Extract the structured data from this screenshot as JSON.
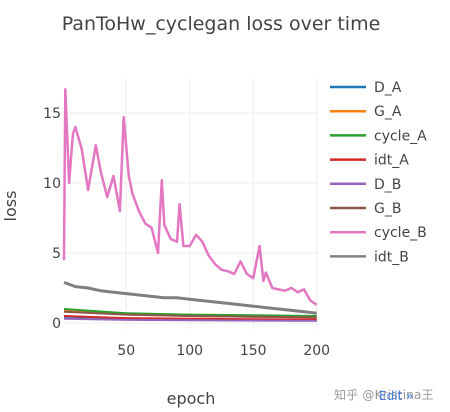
{
  "chart_data": {
    "type": "line",
    "title": "PanToHw_cyclegan loss over time",
    "xlabel": "epoch",
    "ylabel": "loss",
    "xlim": [
      1,
      201
    ],
    "ylim": [
      -0.5,
      17.5
    ],
    "x_ticks": [
      50,
      100,
      150,
      200
    ],
    "y_ticks": [
      0,
      5,
      10,
      15
    ],
    "grid": true,
    "legend_position": "right",
    "series": [
      {
        "name": "D_A",
        "color": "#1f77b4",
        "values": [
          [
            1,
            0.35
          ],
          [
            50,
            0.27
          ],
          [
            100,
            0.23
          ],
          [
            150,
            0.2
          ],
          [
            200,
            0.18
          ]
        ]
      },
      {
        "name": "G_A",
        "color": "#ff7f0e",
        "values": [
          [
            1,
            0.9
          ],
          [
            50,
            0.6
          ],
          [
            100,
            0.5
          ],
          [
            150,
            0.45
          ],
          [
            200,
            0.4
          ]
        ]
      },
      {
        "name": "cycle_A",
        "color": "#2ca02c",
        "values": [
          [
            1,
            1.0
          ],
          [
            50,
            0.7
          ],
          [
            100,
            0.6
          ],
          [
            150,
            0.55
          ],
          [
            200,
            0.5
          ]
        ]
      },
      {
        "name": "idt_A",
        "color": "#d62728",
        "values": [
          [
            1,
            0.5
          ],
          [
            50,
            0.35
          ],
          [
            100,
            0.3
          ],
          [
            150,
            0.27
          ],
          [
            200,
            0.25
          ]
        ]
      },
      {
        "name": "D_B",
        "color": "#9467bd",
        "values": [
          [
            1,
            0.3
          ],
          [
            50,
            0.22
          ],
          [
            100,
            0.2
          ],
          [
            150,
            0.17
          ],
          [
            200,
            0.15
          ]
        ]
      },
      {
        "name": "G_B",
        "color": "#8c564b",
        "values": [
          [
            1,
            0.8
          ],
          [
            50,
            0.6
          ],
          [
            100,
            0.5
          ],
          [
            150,
            0.45
          ],
          [
            200,
            0.4
          ]
        ]
      },
      {
        "name": "cycle_B",
        "color": "#e377c2",
        "values": [
          [
            1,
            4.5
          ],
          [
            2,
            16.7
          ],
          [
            5,
            10.0
          ],
          [
            8,
            13.5
          ],
          [
            10,
            14.0
          ],
          [
            15,
            12.4
          ],
          [
            20,
            9.5
          ],
          [
            26,
            12.7
          ],
          [
            30,
            10.8
          ],
          [
            35,
            9.0
          ],
          [
            40,
            10.5
          ],
          [
            45,
            8.0
          ],
          [
            48,
            14.7
          ],
          [
            52,
            10.5
          ],
          [
            55,
            9.2
          ],
          [
            60,
            8.0
          ],
          [
            65,
            7.1
          ],
          [
            70,
            6.8
          ],
          [
            75,
            5.0
          ],
          [
            78,
            10.2
          ],
          [
            80,
            7.0
          ],
          [
            85,
            6.0
          ],
          [
            90,
            5.8
          ],
          [
            92,
            8.5
          ],
          [
            95,
            5.5
          ],
          [
            100,
            5.5
          ],
          [
            105,
            6.3
          ],
          [
            110,
            5.8
          ],
          [
            115,
            4.8
          ],
          [
            120,
            4.2
          ],
          [
            125,
            3.8
          ],
          [
            130,
            3.7
          ],
          [
            135,
            3.5
          ],
          [
            140,
            4.4
          ],
          [
            145,
            3.5
          ],
          [
            150,
            3.2
          ],
          [
            155,
            5.5
          ],
          [
            158,
            3.0
          ],
          [
            160,
            3.6
          ],
          [
            165,
            2.5
          ],
          [
            170,
            2.4
          ],
          [
            175,
            2.3
          ],
          [
            180,
            2.5
          ],
          [
            185,
            2.2
          ],
          [
            190,
            2.4
          ],
          [
            195,
            1.6
          ],
          [
            200,
            1.3
          ]
        ]
      },
      {
        "name": "idt_B",
        "color": "#7f7f7f",
        "values": [
          [
            1,
            2.9
          ],
          [
            10,
            2.6
          ],
          [
            20,
            2.5
          ],
          [
            30,
            2.3
          ],
          [
            40,
            2.2
          ],
          [
            50,
            2.1
          ],
          [
            60,
            2.0
          ],
          [
            70,
            1.9
          ],
          [
            80,
            1.8
          ],
          [
            90,
            1.8
          ],
          [
            100,
            1.7
          ],
          [
            110,
            1.6
          ],
          [
            120,
            1.5
          ],
          [
            130,
            1.4
          ],
          [
            140,
            1.3
          ],
          [
            150,
            1.2
          ],
          [
            160,
            1.1
          ],
          [
            170,
            1.0
          ],
          [
            180,
            0.9
          ],
          [
            190,
            0.8
          ],
          [
            200,
            0.7
          ]
        ]
      }
    ]
  },
  "watermark": "知乎 @Kristina王",
  "edit_link": "Edit »"
}
